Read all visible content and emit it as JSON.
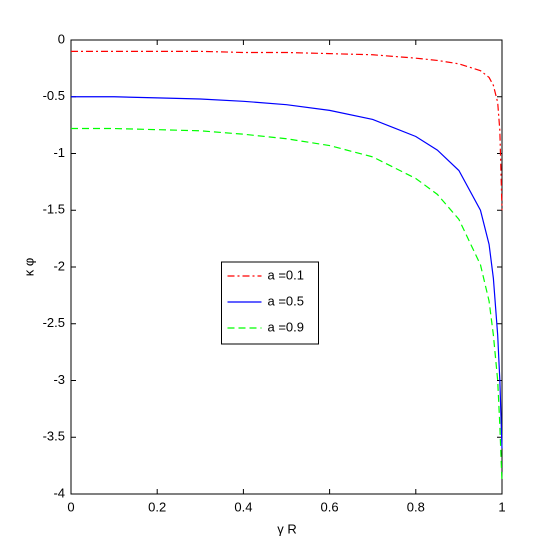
{
  "chart_data": {
    "type": "line",
    "x_label": "γ R",
    "y_label": "κ φ",
    "x": [
      0,
      0.1,
      0.2,
      0.3,
      0.4,
      0.5,
      0.6,
      0.7,
      0.8,
      0.85,
      0.9,
      0.95,
      0.97,
      0.98,
      0.99,
      0.995,
      1
    ],
    "series": [
      {
        "name": "a =0.1",
        "color": "#ff0000",
        "dash": "dashdot",
        "values": [
          -0.1,
          -0.1,
          -0.1,
          -0.1,
          -0.11,
          -0.11,
          -0.12,
          -0.13,
          -0.16,
          -0.18,
          -0.21,
          -0.27,
          -0.33,
          -0.4,
          -0.55,
          -0.8,
          -1.5
        ]
      },
      {
        "name": "a =0.5",
        "color": "#0000ff",
        "dash": "solid",
        "values": [
          -0.5,
          -0.5,
          -0.51,
          -0.52,
          -0.54,
          -0.57,
          -0.62,
          -0.7,
          -0.85,
          -0.97,
          -1.15,
          -1.5,
          -1.8,
          -2.1,
          -2.6,
          -3,
          -3.6
        ]
      },
      {
        "name": "a =0.9",
        "color": "#00ff00",
        "dash": "dashed",
        "values": [
          -0.78,
          -0.78,
          -0.79,
          -0.8,
          -0.83,
          -0.87,
          -0.93,
          -1.03,
          -1.22,
          -1.36,
          -1.58,
          -1.98,
          -2.3,
          -2.6,
          -3,
          -3.4,
          -3.9
        ]
      }
    ],
    "xlim": [
      0,
      1
    ],
    "xticks": [
      0,
      0.2,
      0.4,
      0.6,
      0.8,
      1
    ],
    "ylim": [
      -4,
      0
    ],
    "yticks": [
      0,
      -0.5,
      -1,
      -1.5,
      -2,
      -2.5,
      -3,
      -3.5,
      -4
    ],
    "legend": "center"
  }
}
